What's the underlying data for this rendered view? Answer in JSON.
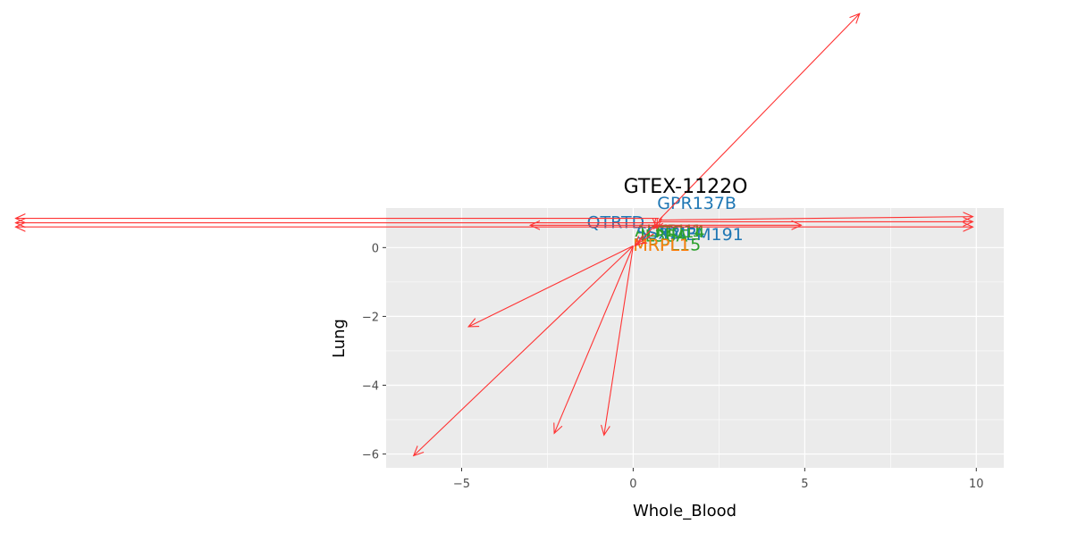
{
  "chart_data": {
    "type": "scatter",
    "title": "GTEX-1122O",
    "xlabel": "Whole_Blood",
    "ylabel": "Lung",
    "xlim": [
      -7.2,
      10.8
    ],
    "ylim": [
      -6.4,
      1.15
    ],
    "xticks": [
      -5,
      0,
      5,
      10
    ],
    "xtick_labels": [
      "−5",
      "0",
      "5",
      "10"
    ],
    "yticks": [
      0,
      -2,
      -4,
      -6
    ],
    "ytick_labels": [
      "0",
      "−2",
      "−4",
      "−6"
    ],
    "grid": true,
    "colors": {
      "arrow": "#ff3333",
      "panel": "#ebebeb",
      "grid": "#ffffff",
      "label_blue": "#1f77b4",
      "label_green": "#2ca02c",
      "label_orange": "#ff7f0e"
    },
    "arrows": [
      {
        "from": [
          0.75,
          0.8
        ],
        "to": [
          6.6,
          6.8
        ]
      },
      {
        "from": [
          0.75,
          0.8
        ],
        "to": [
          9.9,
          0.9
        ]
      },
      {
        "from": [
          0.75,
          0.75
        ],
        "to": [
          9.9,
          0.75
        ]
      },
      {
        "from": [
          0.75,
          0.6
        ],
        "to": [
          9.9,
          0.6
        ]
      },
      {
        "from": [
          0.75,
          0.65
        ],
        "to": [
          4.9,
          0.65
        ]
      },
      {
        "from": [
          0.75,
          0.65
        ],
        "to": [
          -3.0,
          0.65
        ]
      },
      {
        "from": [
          0.75,
          0.85
        ],
        "to": [
          -18,
          0.85
        ]
      },
      {
        "from": [
          0.75,
          0.72
        ],
        "to": [
          -18,
          0.72
        ]
      },
      {
        "from": [
          0.75,
          0.6
        ],
        "to": [
          -18,
          0.6
        ]
      },
      {
        "from": [
          0.7,
          0.85
        ],
        "to": [
          0.7,
          0.55
        ]
      },
      {
        "from": [
          0.85,
          0.9
        ],
        "to": [
          0.6,
          0.55
        ]
      },
      {
        "from": [
          0.0,
          0.05
        ],
        "to": [
          -4.8,
          -2.3
        ]
      },
      {
        "from": [
          0.0,
          0.05
        ],
        "to": [
          -6.4,
          -6.05
        ]
      },
      {
        "from": [
          0.0,
          0.05
        ],
        "to": [
          -2.3,
          -5.4
        ]
      },
      {
        "from": [
          0.0,
          0.05
        ],
        "to": [
          -0.85,
          -5.45
        ]
      },
      {
        "from": [
          0.7,
          0.7
        ],
        "to": [
          0.05,
          0.05
        ]
      },
      {
        "from": [
          0.6,
          0.4
        ],
        "to": [
          0.1,
          0.1
        ]
      }
    ],
    "labels": [
      {
        "text": "GPR137B",
        "x": 0.7,
        "y": 1.12,
        "color": "blue"
      },
      {
        "text": "QTRTD",
        "x": -1.35,
        "y": 0.57,
        "color": "blue"
      },
      {
        "text": "ALKBH1",
        "x": 0.05,
        "y": 0.32,
        "color": "green"
      },
      {
        "text": "SSX2IP",
        "x": 0.1,
        "y": 0.25,
        "color": "blue"
      },
      {
        "text": "TMEM191",
        "x": 0.8,
        "y": 0.22,
        "color": "blue"
      },
      {
        "text": "TTC14",
        "x": 0.55,
        "y": 0.3,
        "color": "green"
      },
      {
        "text": "IL36A",
        "x": 0.2,
        "y": 0.18,
        "color": "green"
      },
      {
        "text": "MRPL15",
        "x": 0.0,
        "y": -0.08,
        "color": "green"
      },
      {
        "text": "MRPL1",
        "x": 0.0,
        "y": -0.1,
        "color": "orange"
      }
    ]
  }
}
